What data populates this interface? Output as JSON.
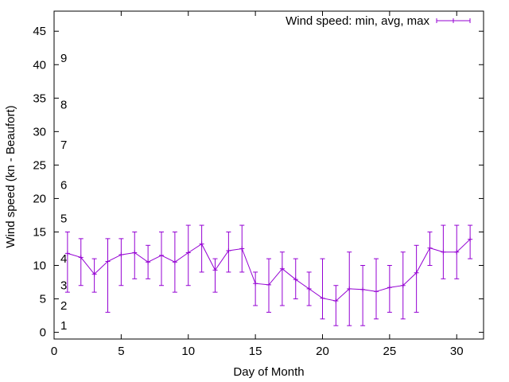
{
  "chart_data": {
    "type": "line",
    "title": "",
    "xlabel": "Day of Month",
    "ylabel": "Wind speed (kn - Beaufort)",
    "xlim": [
      0,
      32
    ],
    "ylim": [
      -1,
      48
    ],
    "xticks": [
      0,
      5,
      10,
      15,
      20,
      25,
      30
    ],
    "yticks": [
      0,
      5,
      10,
      15,
      20,
      25,
      30,
      35,
      40,
      45
    ],
    "grid": false,
    "legend_position": "top-right",
    "series": [
      {
        "name": "Wind speed: min, avg, max",
        "color": "#9400d3",
        "style": "errorlines",
        "x": [
          1,
          2,
          3,
          4,
          5,
          6,
          7,
          8,
          9,
          10,
          11,
          12,
          13,
          14,
          15,
          16,
          17,
          18,
          19,
          20,
          21,
          22,
          23,
          24,
          25,
          26,
          27,
          28,
          29,
          30,
          31
        ],
        "avg": [
          11.8,
          11.2,
          8.7,
          10.6,
          11.6,
          11.9,
          10.5,
          11.5,
          10.5,
          11.9,
          13.2,
          9.3,
          12.2,
          12.5,
          7.3,
          7.1,
          9.5,
          7.9,
          6.5,
          5.1,
          4.7,
          6.5,
          6.4,
          6.1,
          6.7,
          7.0,
          8.9,
          12.6,
          12.0,
          12.0,
          13.9
        ],
        "min": [
          6,
          7,
          6,
          3,
          7,
          8,
          8,
          7,
          6,
          7,
          9,
          6,
          9,
          9,
          4,
          3,
          4,
          5,
          4,
          2,
          1,
          1,
          1,
          2,
          3,
          2,
          3,
          10,
          8,
          8,
          11
        ],
        "max": [
          15,
          14,
          11,
          14,
          14,
          15,
          13,
          15,
          15,
          16,
          16,
          11,
          15,
          16,
          9,
          11,
          12,
          11,
          9,
          11,
          7,
          12,
          10,
          11,
          10,
          12,
          13,
          15,
          16,
          16,
          16
        ]
      }
    ],
    "annotations": [
      {
        "text": "1",
        "y": 1
      },
      {
        "text": "2",
        "y": 4
      },
      {
        "text": "3",
        "y": 7
      },
      {
        "text": "4",
        "y": 11
      },
      {
        "text": "5",
        "y": 17
      },
      {
        "text": "6",
        "y": 22
      },
      {
        "text": "7",
        "y": 28
      },
      {
        "text": "8",
        "y": 34
      },
      {
        "text": "9",
        "y": 41
      }
    ]
  }
}
